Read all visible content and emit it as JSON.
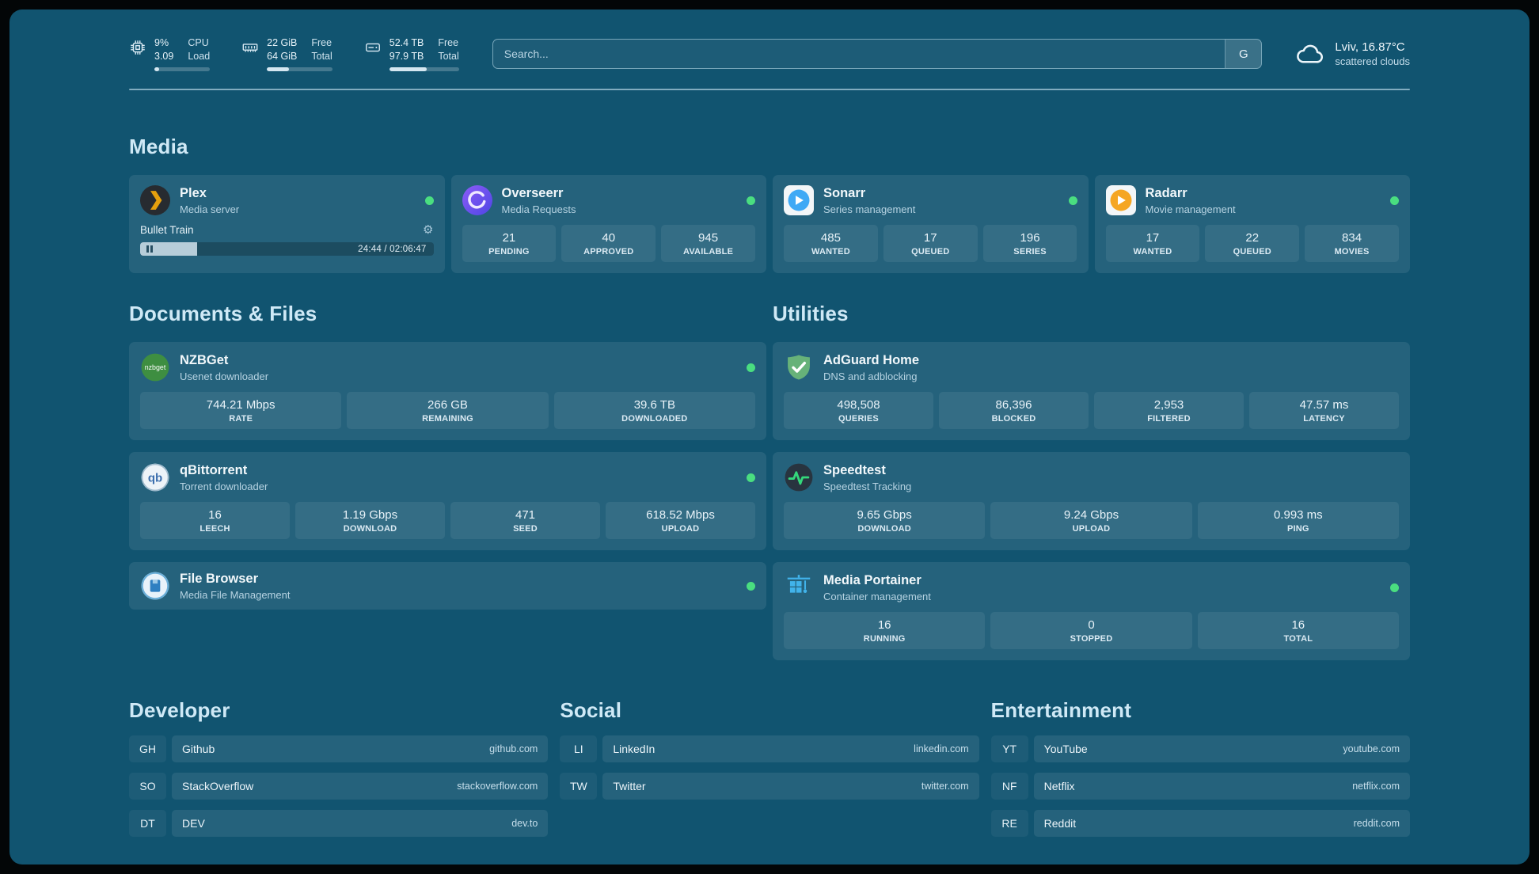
{
  "header": {
    "system": [
      {
        "label": "cpu",
        "col1": [
          "9%",
          "3.09"
        ],
        "col2": [
          "CPU",
          "Load"
        ],
        "progress": 9
      },
      {
        "label": "memory",
        "col1": [
          "22 GiB",
          "64 GiB"
        ],
        "col2": [
          "Free",
          "Total"
        ],
        "progress": 34
      },
      {
        "label": "disk",
        "col1": [
          "52.4 TB",
          "97.9 TB"
        ],
        "col2": [
          "Free",
          "Total"
        ],
        "progress": 54
      }
    ],
    "search": {
      "placeholder": "Search...",
      "button_label": "G"
    },
    "weather": {
      "location": "Lviv, 16.87°C",
      "condition": "scattered clouds"
    }
  },
  "sections": {
    "media": {
      "title": "Media",
      "cards": [
        {
          "name": "Plex",
          "subtitle": "Media server",
          "now_playing": {
            "title": "Bullet Train",
            "time": "24:44 / 02:06:47",
            "progress": 19.5
          }
        },
        {
          "name": "Overseerr",
          "subtitle": "Media Requests",
          "stats": [
            {
              "value": "21",
              "label": "PENDING"
            },
            {
              "value": "40",
              "label": "APPROVED"
            },
            {
              "value": "945",
              "label": "AVAILABLE"
            }
          ]
        },
        {
          "name": "Sonarr",
          "subtitle": "Series management",
          "stats": [
            {
              "value": "485",
              "label": "WANTED"
            },
            {
              "value": "17",
              "label": "QUEUED"
            },
            {
              "value": "196",
              "label": "SERIES"
            }
          ]
        },
        {
          "name": "Radarr",
          "subtitle": "Movie management",
          "stats": [
            {
              "value": "17",
              "label": "WANTED"
            },
            {
              "value": "22",
              "label": "QUEUED"
            },
            {
              "value": "834",
              "label": "MOVIES"
            }
          ]
        }
      ]
    },
    "documents": {
      "title": "Documents & Files",
      "cards": [
        {
          "name": "NZBGet",
          "subtitle": "Usenet downloader",
          "stats": [
            {
              "value": "744.21 Mbps",
              "label": "RATE"
            },
            {
              "value": "266 GB",
              "label": "REMAINING"
            },
            {
              "value": "39.6 TB",
              "label": "DOWNLOADED"
            }
          ]
        },
        {
          "name": "qBittorrent",
          "subtitle": "Torrent downloader",
          "stats": [
            {
              "value": "16",
              "label": "LEECH"
            },
            {
              "value": "1.19 Gbps",
              "label": "DOWNLOAD"
            },
            {
              "value": "471",
              "label": "SEED"
            },
            {
              "value": "618.52 Mbps",
              "label": "UPLOAD"
            }
          ]
        },
        {
          "name": "File Browser",
          "subtitle": "Media File Management"
        }
      ]
    },
    "utilities": {
      "title": "Utilities",
      "cards": [
        {
          "name": "AdGuard Home",
          "subtitle": "DNS and adblocking",
          "stats": [
            {
              "value": "498,508",
              "label": "QUERIES"
            },
            {
              "value": "86,396",
              "label": "BLOCKED"
            },
            {
              "value": "2,953",
              "label": "FILTERED"
            },
            {
              "value": "47.57 ms",
              "label": "LATENCY"
            }
          ]
        },
        {
          "name": "Speedtest",
          "subtitle": "Speedtest Tracking",
          "stats": [
            {
              "value": "9.65 Gbps",
              "label": "DOWNLOAD"
            },
            {
              "value": "9.24 Gbps",
              "label": "UPLOAD"
            },
            {
              "value": "0.993 ms",
              "label": "PING"
            }
          ]
        },
        {
          "name": "Media Portainer",
          "subtitle": "Container management",
          "stats": [
            {
              "value": "16",
              "label": "RUNNING"
            },
            {
              "value": "0",
              "label": "STOPPED"
            },
            {
              "value": "16",
              "label": "TOTAL"
            }
          ]
        }
      ]
    }
  },
  "bookmarks": {
    "groups": [
      {
        "title": "Developer",
        "items": [
          {
            "abbr": "GH",
            "name": "Github",
            "domain": "github.com"
          },
          {
            "abbr": "SO",
            "name": "StackOverflow",
            "domain": "stackoverflow.com"
          },
          {
            "abbr": "DT",
            "name": "DEV",
            "domain": "dev.to"
          }
        ]
      },
      {
        "title": "Social",
        "items": [
          {
            "abbr": "LI",
            "name": "LinkedIn",
            "domain": "linkedin.com"
          },
          {
            "abbr": "TW",
            "name": "Twitter",
            "domain": "twitter.com"
          }
        ]
      },
      {
        "title": "Entertainment",
        "items": [
          {
            "abbr": "YT",
            "name": "YouTube",
            "domain": "youtube.com"
          },
          {
            "abbr": "NF",
            "name": "Netflix",
            "domain": "netflix.com"
          },
          {
            "abbr": "RE",
            "name": "Reddit",
            "domain": "reddit.com"
          }
        ]
      }
    ]
  },
  "colors": {
    "status_online": "#4ade80",
    "page_background": "#115470"
  }
}
